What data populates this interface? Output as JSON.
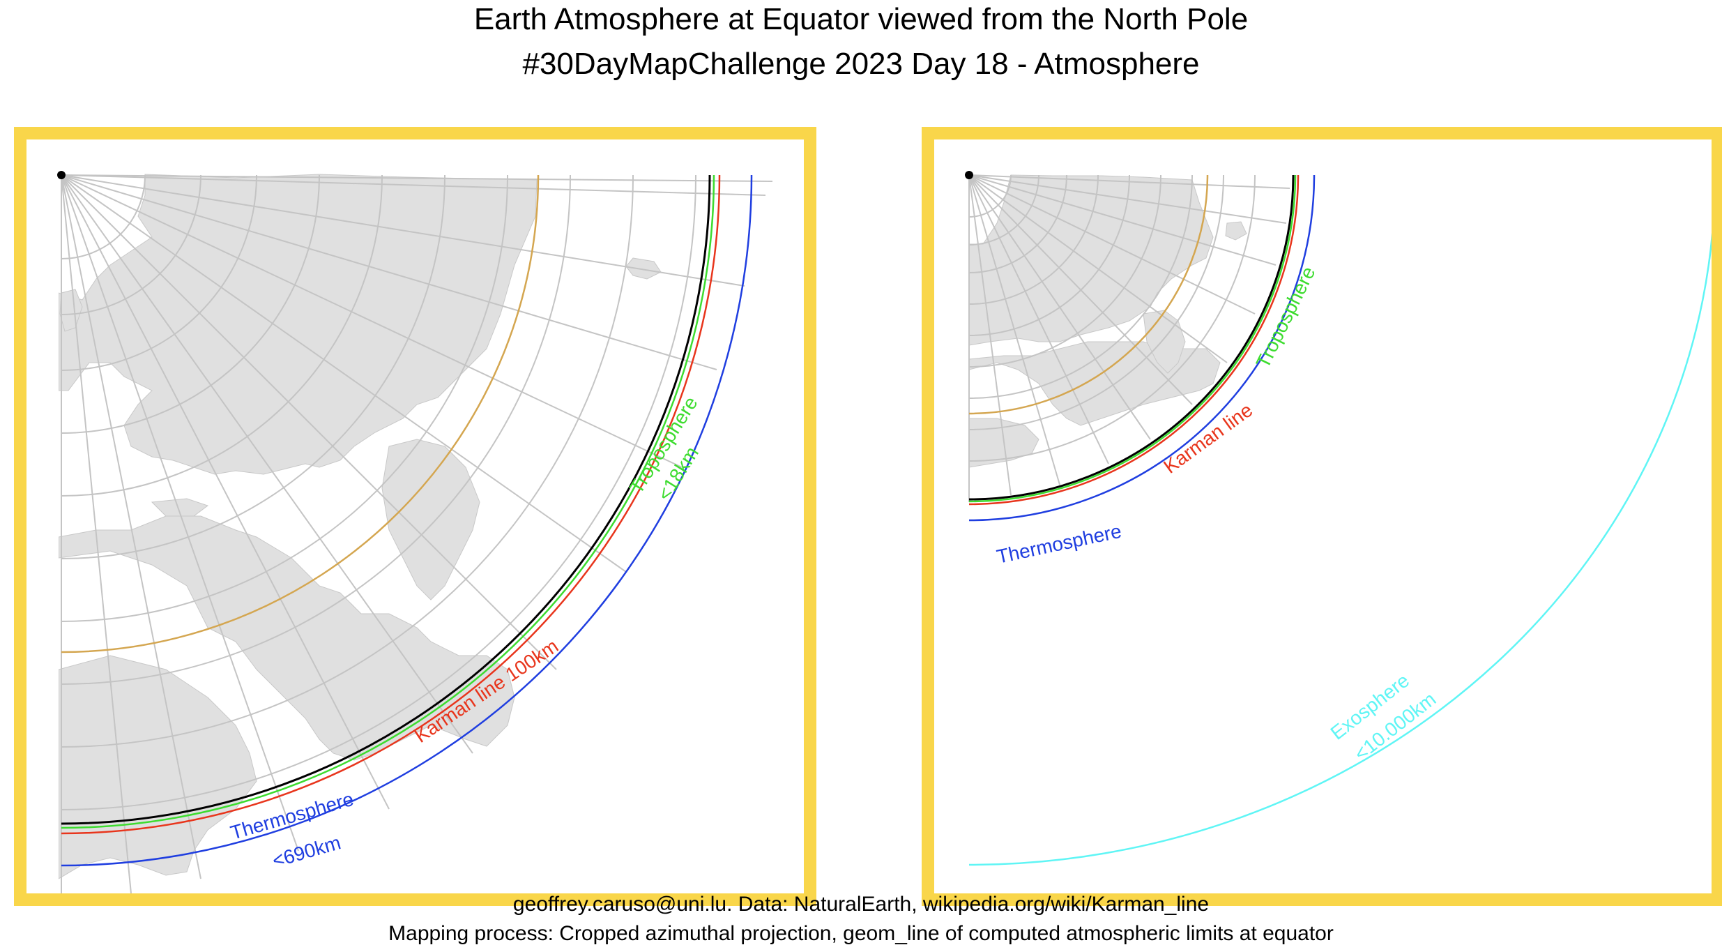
{
  "header": {
    "title": "Earth Atmosphere at Equator viewed from the North Pole",
    "subtitle": "#30DayMapChallenge 2023 Day 18 - Atmosphere"
  },
  "footer": {
    "credit": "geoffrey.caruso@uni.lu. Data: NaturalEarth, wikipedia.org/wiki/Karman_line",
    "method": "Mapping process: Cropped azimuthal projection, geom_line of computed atmospheric limits at equator"
  },
  "colors": {
    "frame": "#f9d64a",
    "land": "#e0e0e0",
    "graticule": "#c4c4c4",
    "tropic": "#d4a650",
    "equator": "#000000",
    "troposphere": "#3ddc2f",
    "karman": "#e8351c",
    "thermosphere": "#1f3ee0",
    "exosphere": "#5ff5f5"
  },
  "panels": {
    "left": {
      "layers": {
        "troposphere": {
          "line1": "Troposphere",
          "line2": "<18km"
        },
        "karman": {
          "line1": "Karman line 100km"
        },
        "thermosphere": {
          "line1": "Thermosphere",
          "line2": "<690km"
        }
      }
    },
    "right": {
      "layers": {
        "troposphere": {
          "line1": "Troposphere"
        },
        "karman": {
          "line1": "Karman line"
        },
        "thermosphere": {
          "line1": "Thermosphere"
        },
        "exosphere": {
          "line1": "Exosphere",
          "line2": "<10.000km"
        }
      }
    }
  }
}
